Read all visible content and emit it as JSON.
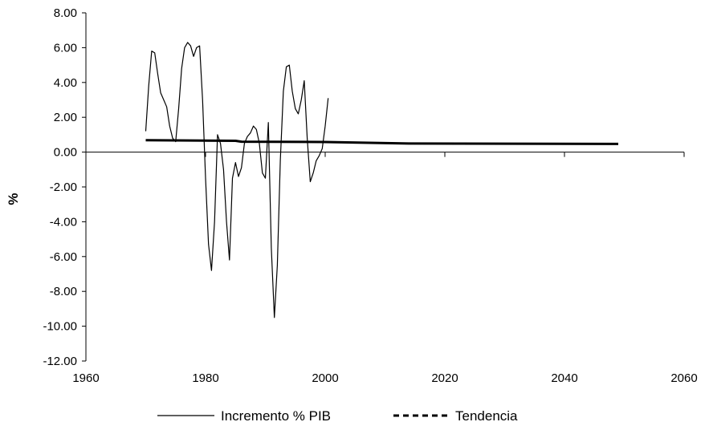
{
  "chart_data": {
    "type": "line",
    "title": "",
    "xlabel": "",
    "ylabel": "%",
    "xlim": [
      1960,
      2060
    ],
    "ylim": [
      -12,
      8
    ],
    "x_ticks": [
      1960,
      1980,
      2000,
      2020,
      2040,
      2060
    ],
    "y_ticks": [
      8,
      6,
      4,
      2,
      0,
      -2,
      -4,
      -6,
      -8,
      -10,
      -12
    ],
    "x_tick_labels": [
      "1960",
      "1980",
      "2000",
      "2020",
      "2040",
      "2060"
    ],
    "y_tick_labels": [
      "8.00",
      "6.00",
      "4.00",
      "2.00",
      "0.00",
      "-2.00",
      "-4.00",
      "-6.00",
      "-8.00",
      "-10.00",
      "-12.00"
    ],
    "grid": false,
    "legend_position": "bottom",
    "series": [
      {
        "name": "Incremento % PIB",
        "style": "solid",
        "color": "#000000",
        "x": [
          1970,
          1970.5,
          1971,
          1971.5,
          1972,
          1972.5,
          1973,
          1973.5,
          1974,
          1974.5,
          1975,
          1975.5,
          1976,
          1976.5,
          1977,
          1977.5,
          1978,
          1978.5,
          1979,
          1979.5,
          1980,
          1980.5,
          1981,
          1981.5,
          1982,
          1982.5,
          1983,
          1983.5,
          1984,
          1984.5,
          1985,
          1985.5,
          1986,
          1986.5,
          1987,
          1987.5,
          1988,
          1988.5,
          1989,
          1989.5,
          1990,
          1990.5,
          1991,
          1991.5,
          1992,
          1992.5,
          1993,
          1993.5,
          1994,
          1994.5,
          1995,
          1995.5,
          1996,
          1996.5,
          1997,
          1997.5,
          1998,
          1998.5,
          1999,
          1999.5,
          2000,
          2000.5,
          2001,
          2001.5,
          2002,
          2002.5,
          2003
        ],
        "values": [
          1.2,
          3.8,
          5.8,
          5.7,
          4.5,
          3.4,
          3.0,
          2.6,
          1.5,
          0.8,
          0.6,
          2.5,
          4.8,
          6.0,
          6.3,
          6.1,
          5.5,
          6.0,
          6.1,
          3.0,
          -1.5,
          -5.3,
          -6.8,
          -4.0,
          1.0,
          0.5,
          -1.0,
          -4.0,
          -6.2,
          -1.5,
          -0.6,
          -1.4,
          -0.9,
          0.5,
          0.9,
          1.1,
          1.5,
          1.3,
          0.5,
          -1.2,
          -1.5,
          1.7,
          -5.5,
          -9.5,
          -6.5,
          -0.5,
          3.5,
          4.9,
          5.0,
          3.5,
          2.5,
          2.2,
          3.0,
          4.1,
          0.8,
          -1.7,
          -1.2,
          -0.5,
          -0.2,
          0.2,
          1.5,
          3.1,
          null,
          null,
          null,
          null,
          null
        ]
      },
      {
        "name": "Tendencia",
        "style": "dashed",
        "color": "#000000",
        "x": [
          1970,
          1985,
          1986,
          2000,
          2013,
          2049
        ],
        "values": [
          0.68,
          0.65,
          0.6,
          0.58,
          0.5,
          0.47
        ]
      }
    ]
  }
}
